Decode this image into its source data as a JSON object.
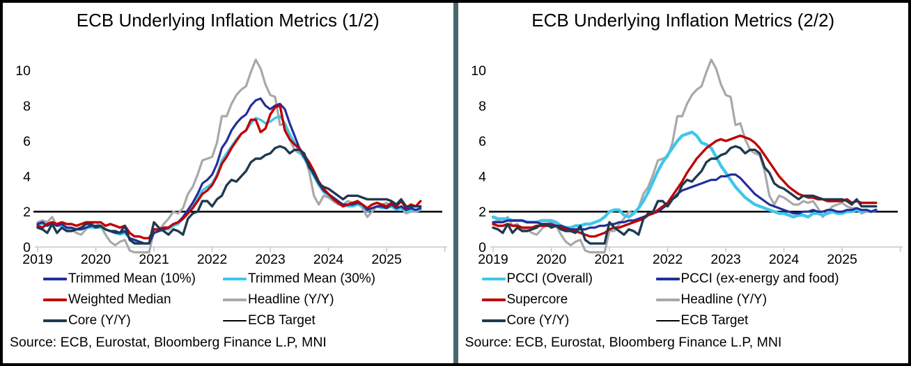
{
  "source": {
    "text": "Source: ECB, Eurostat, Bloomberg Finance L.P, MNI"
  },
  "colors": {
    "divider": "#4A666F",
    "axis": "#C9C9C9",
    "target": "#000000",
    "background": "#FFFFFF"
  },
  "chart_data": [
    {
      "type": "line",
      "title": "ECB Underlying Inflation Metrics (1/2)",
      "x_unit": "monthly",
      "x_start": "2019-01",
      "x_end": "2025-08",
      "x_tick_labels": [
        "2019",
        "2020",
        "2021",
        "2022",
        "2023",
        "2024",
        "2025"
      ],
      "yticks": [
        0,
        2,
        4,
        6,
        8,
        10
      ],
      "ylim": [
        -0.5,
        11
      ],
      "grid": false,
      "legend_position": "bottom",
      "target": {
        "label": "ECB Target",
        "value": 2,
        "color": "#000000",
        "width": 2.6
      },
      "draw_order": [
        3,
        1,
        0,
        2,
        4
      ],
      "series": [
        {
          "name": "Trimmed Mean (10%)",
          "color": "#232E99",
          "width": 3.2,
          "values": [
            1.3,
            1.4,
            1.2,
            1.4,
            1.2,
            1.3,
            1.1,
            1.1,
            1.0,
            1.0,
            1.1,
            1.2,
            1.2,
            1.2,
            1.0,
            0.9,
            0.8,
            0.8,
            0.9,
            0.5,
            0.4,
            0.3,
            0.2,
            0.2,
            0.8,
            0.9,
            1.0,
            1.1,
            1.3,
            1.4,
            1.7,
            2.1,
            2.5,
            3.0,
            3.6,
            3.8,
            4.1,
            4.7,
            5.6,
            6.0,
            6.6,
            7.0,
            7.3,
            7.5,
            8.0,
            8.3,
            8.4,
            8.0,
            7.8,
            8.0,
            8.1,
            7.8,
            7.0,
            6.3,
            5.6,
            5.1,
            4.6,
            4.1,
            3.6,
            3.2,
            3.0,
            2.8,
            2.6,
            2.4,
            2.4,
            2.4,
            2.5,
            2.4,
            2.1,
            2.2,
            2.3,
            2.3,
            2.2,
            2.4,
            2.2,
            2.3,
            2.1,
            2.2,
            2.1,
            2.2
          ]
        },
        {
          "name": "Trimmed Mean (30%)",
          "color": "#3EC7EA",
          "width": 3.4,
          "values": [
            1.3,
            1.3,
            1.2,
            1.3,
            1.2,
            1.2,
            1.1,
            1.0,
            1.0,
            1.0,
            1.1,
            1.1,
            1.1,
            1.1,
            1.0,
            0.9,
            0.8,
            0.7,
            0.8,
            0.5,
            0.3,
            0.3,
            0.2,
            0.2,
            0.8,
            0.9,
            1.0,
            1.0,
            1.2,
            1.3,
            1.6,
            1.9,
            2.3,
            2.7,
            3.2,
            3.4,
            3.6,
            4.1,
            4.9,
            5.3,
            5.7,
            6.1,
            6.4,
            6.6,
            7.0,
            7.3,
            7.2,
            7.0,
            7.1,
            7.3,
            7.4,
            7.0,
            6.4,
            5.9,
            5.4,
            5.0,
            4.5,
            4.0,
            3.5,
            3.1,
            2.9,
            2.7,
            2.5,
            2.4,
            2.3,
            2.3,
            2.4,
            2.3,
            2.0,
            2.2,
            2.3,
            2.2,
            2.2,
            2.3,
            2.1,
            2.2,
            2.0,
            2.1,
            2.1,
            2.1
          ]
        },
        {
          "name": "Weighted Median",
          "color": "#C00000",
          "width": 3.4,
          "values": [
            1.2,
            1.1,
            1.3,
            1.4,
            1.3,
            1.4,
            1.3,
            1.3,
            1.2,
            1.3,
            1.4,
            1.4,
            1.4,
            1.4,
            1.2,
            1.3,
            1.2,
            1.1,
            1.2,
            0.8,
            0.6,
            0.6,
            0.5,
            0.5,
            1.0,
            1.0,
            1.1,
            1.1,
            1.3,
            1.4,
            1.6,
            1.9,
            2.2,
            2.6,
            3.0,
            3.2,
            3.5,
            4.0,
            4.7,
            5.1,
            5.6,
            6.0,
            6.4,
            6.6,
            7.2,
            7.2,
            6.5,
            6.7,
            7.5,
            7.9,
            8.0,
            6.6,
            6.1,
            5.8,
            5.6,
            5.2,
            4.8,
            4.3,
            3.7,
            3.3,
            3.0,
            2.7,
            2.5,
            2.3,
            2.4,
            2.5,
            2.6,
            2.4,
            2.2,
            2.4,
            2.5,
            2.4,
            2.3,
            2.5,
            2.3,
            2.6,
            2.2,
            2.4,
            2.3,
            2.6
          ]
        },
        {
          "name": "Headline (Y/Y)",
          "color": "#A8A8A8",
          "width": 3.2,
          "values": [
            1.4,
            1.5,
            1.4,
            1.7,
            1.2,
            1.3,
            1.0,
            1.0,
            0.8,
            0.7,
            1.0,
            1.3,
            1.4,
            1.2,
            0.7,
            0.3,
            0.1,
            0.3,
            0.4,
            -0.2,
            -0.3,
            -0.3,
            -0.3,
            -0.3,
            0.9,
            0.9,
            1.3,
            1.6,
            2.0,
            1.9,
            2.2,
            3.0,
            3.4,
            4.1,
            4.9,
            5.0,
            5.1,
            5.9,
            7.4,
            7.4,
            8.1,
            8.6,
            8.9,
            9.1,
            9.9,
            10.6,
            10.1,
            9.2,
            8.6,
            8.5,
            6.9,
            7.0,
            6.1,
            5.5,
            5.3,
            5.2,
            4.3,
            2.9,
            2.4,
            2.9,
            2.8,
            2.6,
            2.4,
            2.4,
            2.6,
            2.5,
            2.6,
            2.2,
            1.7,
            2.0,
            2.3,
            2.4,
            2.5,
            2.3,
            2.2,
            2.2,
            1.9,
            2.0,
            2.0,
            2.1
          ]
        },
        {
          "name": "Core (Y/Y)",
          "color": "#1E3A50",
          "width": 3.4,
          "values": [
            1.1,
            1.0,
            0.8,
            1.3,
            0.8,
            1.1,
            0.9,
            0.9,
            1.0,
            1.1,
            1.3,
            1.3,
            1.1,
            1.2,
            1.0,
            0.9,
            0.9,
            0.8,
            1.2,
            0.4,
            0.2,
            0.2,
            0.2,
            0.2,
            1.4,
            1.1,
            0.9,
            0.7,
            1.0,
            0.9,
            0.7,
            1.6,
            1.9,
            2.0,
            2.6,
            2.6,
            2.3,
            2.7,
            2.9,
            3.5,
            3.8,
            3.7,
            4.0,
            4.3,
            4.8,
            5.0,
            5.0,
            5.2,
            5.3,
            5.6,
            5.7,
            5.6,
            5.3,
            5.5,
            5.5,
            5.3,
            4.5,
            4.2,
            3.6,
            3.4,
            3.3,
            3.1,
            2.9,
            2.7,
            2.9,
            2.9,
            2.9,
            2.8,
            2.7,
            2.7,
            2.7,
            2.7,
            2.7,
            2.6,
            2.4,
            2.7,
            2.3,
            2.3,
            2.3,
            2.3
          ]
        }
      ]
    },
    {
      "type": "line",
      "title": "ECB Underlying Inflation Metrics (2/2)",
      "x_unit": "monthly",
      "x_start": "2019-01",
      "x_end": "2025-08",
      "x_tick_labels": [
        "2019",
        "2020",
        "2021",
        "2022",
        "2023",
        "2024",
        "2025"
      ],
      "yticks": [
        0,
        2,
        4,
        6,
        8,
        10
      ],
      "ylim": [
        -0.5,
        11
      ],
      "grid": false,
      "legend_position": "bottom",
      "target": {
        "label": "ECB Target",
        "value": 2,
        "color": "#000000",
        "width": 2.6
      },
      "draw_order": [
        3,
        0,
        1,
        2,
        4
      ],
      "series": [
        {
          "name": "PCCI (Overall)",
          "color": "#3EC7EA",
          "width": 4.4,
          "values": [
            1.7,
            1.6,
            1.6,
            1.6,
            1.5,
            1.5,
            1.5,
            1.4,
            1.4,
            1.4,
            1.5,
            1.5,
            1.5,
            1.4,
            1.2,
            1.1,
            1.1,
            1.2,
            1.2,
            1.3,
            1.3,
            1.4,
            1.5,
            1.7,
            2.0,
            2.1,
            2.1,
            1.8,
            1.7,
            1.9,
            2.2,
            2.6,
            3.1,
            3.7,
            4.3,
            4.8,
            5.2,
            5.6,
            6.0,
            6.3,
            6.4,
            6.5,
            6.3,
            5.9,
            5.8,
            5.6,
            5.1,
            4.6,
            4.2,
            3.8,
            3.4,
            3.1,
            2.8,
            2.6,
            2.4,
            2.3,
            2.2,
            2.1,
            2.0,
            1.9,
            1.9,
            1.8,
            1.7,
            1.8,
            1.8,
            1.7,
            1.9,
            1.9,
            1.8,
            1.9,
            2.0,
            1.9,
            1.9,
            2.0,
            2.0,
            2.1,
            2.0,
            2.1,
            2.0,
            2.1
          ]
        },
        {
          "name": "PCCI (ex-energy and food)",
          "color": "#232E99",
          "width": 3.2,
          "values": [
            1.4,
            1.4,
            1.4,
            1.5,
            1.5,
            1.5,
            1.5,
            1.4,
            1.4,
            1.4,
            1.3,
            1.3,
            1.3,
            1.2,
            1.2,
            1.1,
            1.0,
            1.0,
            1.0,
            1.0,
            1.1,
            1.1,
            1.2,
            1.2,
            1.3,
            1.3,
            1.4,
            1.4,
            1.5,
            1.5,
            1.6,
            1.7,
            1.8,
            1.9,
            2.0,
            2.2,
            2.4,
            2.7,
            3.0,
            3.2,
            3.3,
            3.4,
            3.5,
            3.6,
            3.7,
            3.8,
            3.8,
            4.0,
            4.0,
            4.1,
            4.1,
            3.9,
            3.6,
            3.3,
            3.0,
            2.8,
            2.6,
            2.4,
            2.3,
            2.2,
            2.1,
            2.0,
            1.9,
            1.9,
            2.0,
            2.0,
            2.1,
            2.0,
            2.0,
            2.1,
            2.1,
            2.0,
            2.0,
            2.1,
            2.1,
            2.2,
            2.1,
            2.1,
            2.0,
            2.1
          ]
        },
        {
          "name": "Supercore",
          "color": "#C00000",
          "width": 3.4,
          "values": [
            1.3,
            1.2,
            1.2,
            1.3,
            1.2,
            1.2,
            1.1,
            1.1,
            1.1,
            1.2,
            1.2,
            1.2,
            1.2,
            1.2,
            1.1,
            1.0,
            0.9,
            0.9,
            0.8,
            0.7,
            0.6,
            0.6,
            0.7,
            0.8,
            1.0,
            1.1,
            1.1,
            1.2,
            1.3,
            1.4,
            1.5,
            1.6,
            1.8,
            1.9,
            2.1,
            2.3,
            2.5,
            2.9,
            3.3,
            3.7,
            4.2,
            4.6,
            5.0,
            5.3,
            5.6,
            5.8,
            6.0,
            6.1,
            6.0,
            6.1,
            6.2,
            6.3,
            6.2,
            6.1,
            5.9,
            5.6,
            5.2,
            4.8,
            4.4,
            4.0,
            3.7,
            3.4,
            3.2,
            3.0,
            2.9,
            2.8,
            2.8,
            2.7,
            2.7,
            2.6,
            2.6,
            2.6,
            2.6,
            2.7,
            2.5,
            2.6,
            2.5,
            2.5,
            2.5,
            2.5
          ]
        },
        {
          "name": "Headline (Y/Y)",
          "color": "#A8A8A8",
          "width": 3.2,
          "values": [
            1.4,
            1.5,
            1.4,
            1.7,
            1.2,
            1.3,
            1.0,
            1.0,
            0.8,
            0.7,
            1.0,
            1.3,
            1.4,
            1.2,
            0.7,
            0.3,
            0.1,
            0.3,
            0.4,
            -0.2,
            -0.3,
            -0.3,
            -0.3,
            -0.3,
            0.9,
            0.9,
            1.3,
            1.6,
            2.0,
            1.9,
            2.2,
            3.0,
            3.4,
            4.1,
            4.9,
            5.0,
            5.1,
            5.9,
            7.4,
            7.4,
            8.1,
            8.6,
            8.9,
            9.1,
            9.9,
            10.6,
            10.1,
            9.2,
            8.6,
            8.5,
            6.9,
            7.0,
            6.1,
            5.5,
            5.3,
            5.2,
            4.3,
            2.9,
            2.4,
            2.9,
            2.8,
            2.6,
            2.4,
            2.4,
            2.6,
            2.5,
            2.6,
            2.2,
            1.7,
            2.0,
            2.3,
            2.4,
            2.5,
            2.3,
            2.2,
            2.2,
            1.9,
            2.0,
            2.0,
            2.1
          ]
        },
        {
          "name": "Core (Y/Y)",
          "color": "#1E3A50",
          "width": 3.4,
          "values": [
            1.1,
            1.0,
            0.8,
            1.3,
            0.8,
            1.1,
            0.9,
            0.9,
            1.0,
            1.1,
            1.3,
            1.3,
            1.1,
            1.2,
            1.0,
            0.9,
            0.9,
            0.8,
            1.2,
            0.4,
            0.2,
            0.2,
            0.2,
            0.2,
            1.4,
            1.1,
            0.9,
            0.7,
            1.0,
            0.9,
            0.7,
            1.6,
            1.9,
            2.0,
            2.6,
            2.6,
            2.3,
            2.7,
            2.9,
            3.5,
            3.8,
            3.7,
            4.0,
            4.3,
            4.8,
            5.0,
            5.0,
            5.2,
            5.3,
            5.6,
            5.7,
            5.6,
            5.3,
            5.5,
            5.5,
            5.3,
            4.5,
            4.2,
            3.6,
            3.4,
            3.3,
            3.1,
            2.9,
            2.7,
            2.9,
            2.9,
            2.9,
            2.8,
            2.7,
            2.7,
            2.7,
            2.7,
            2.7,
            2.6,
            2.4,
            2.7,
            2.3,
            2.3,
            2.3,
            2.3
          ]
        }
      ]
    }
  ]
}
